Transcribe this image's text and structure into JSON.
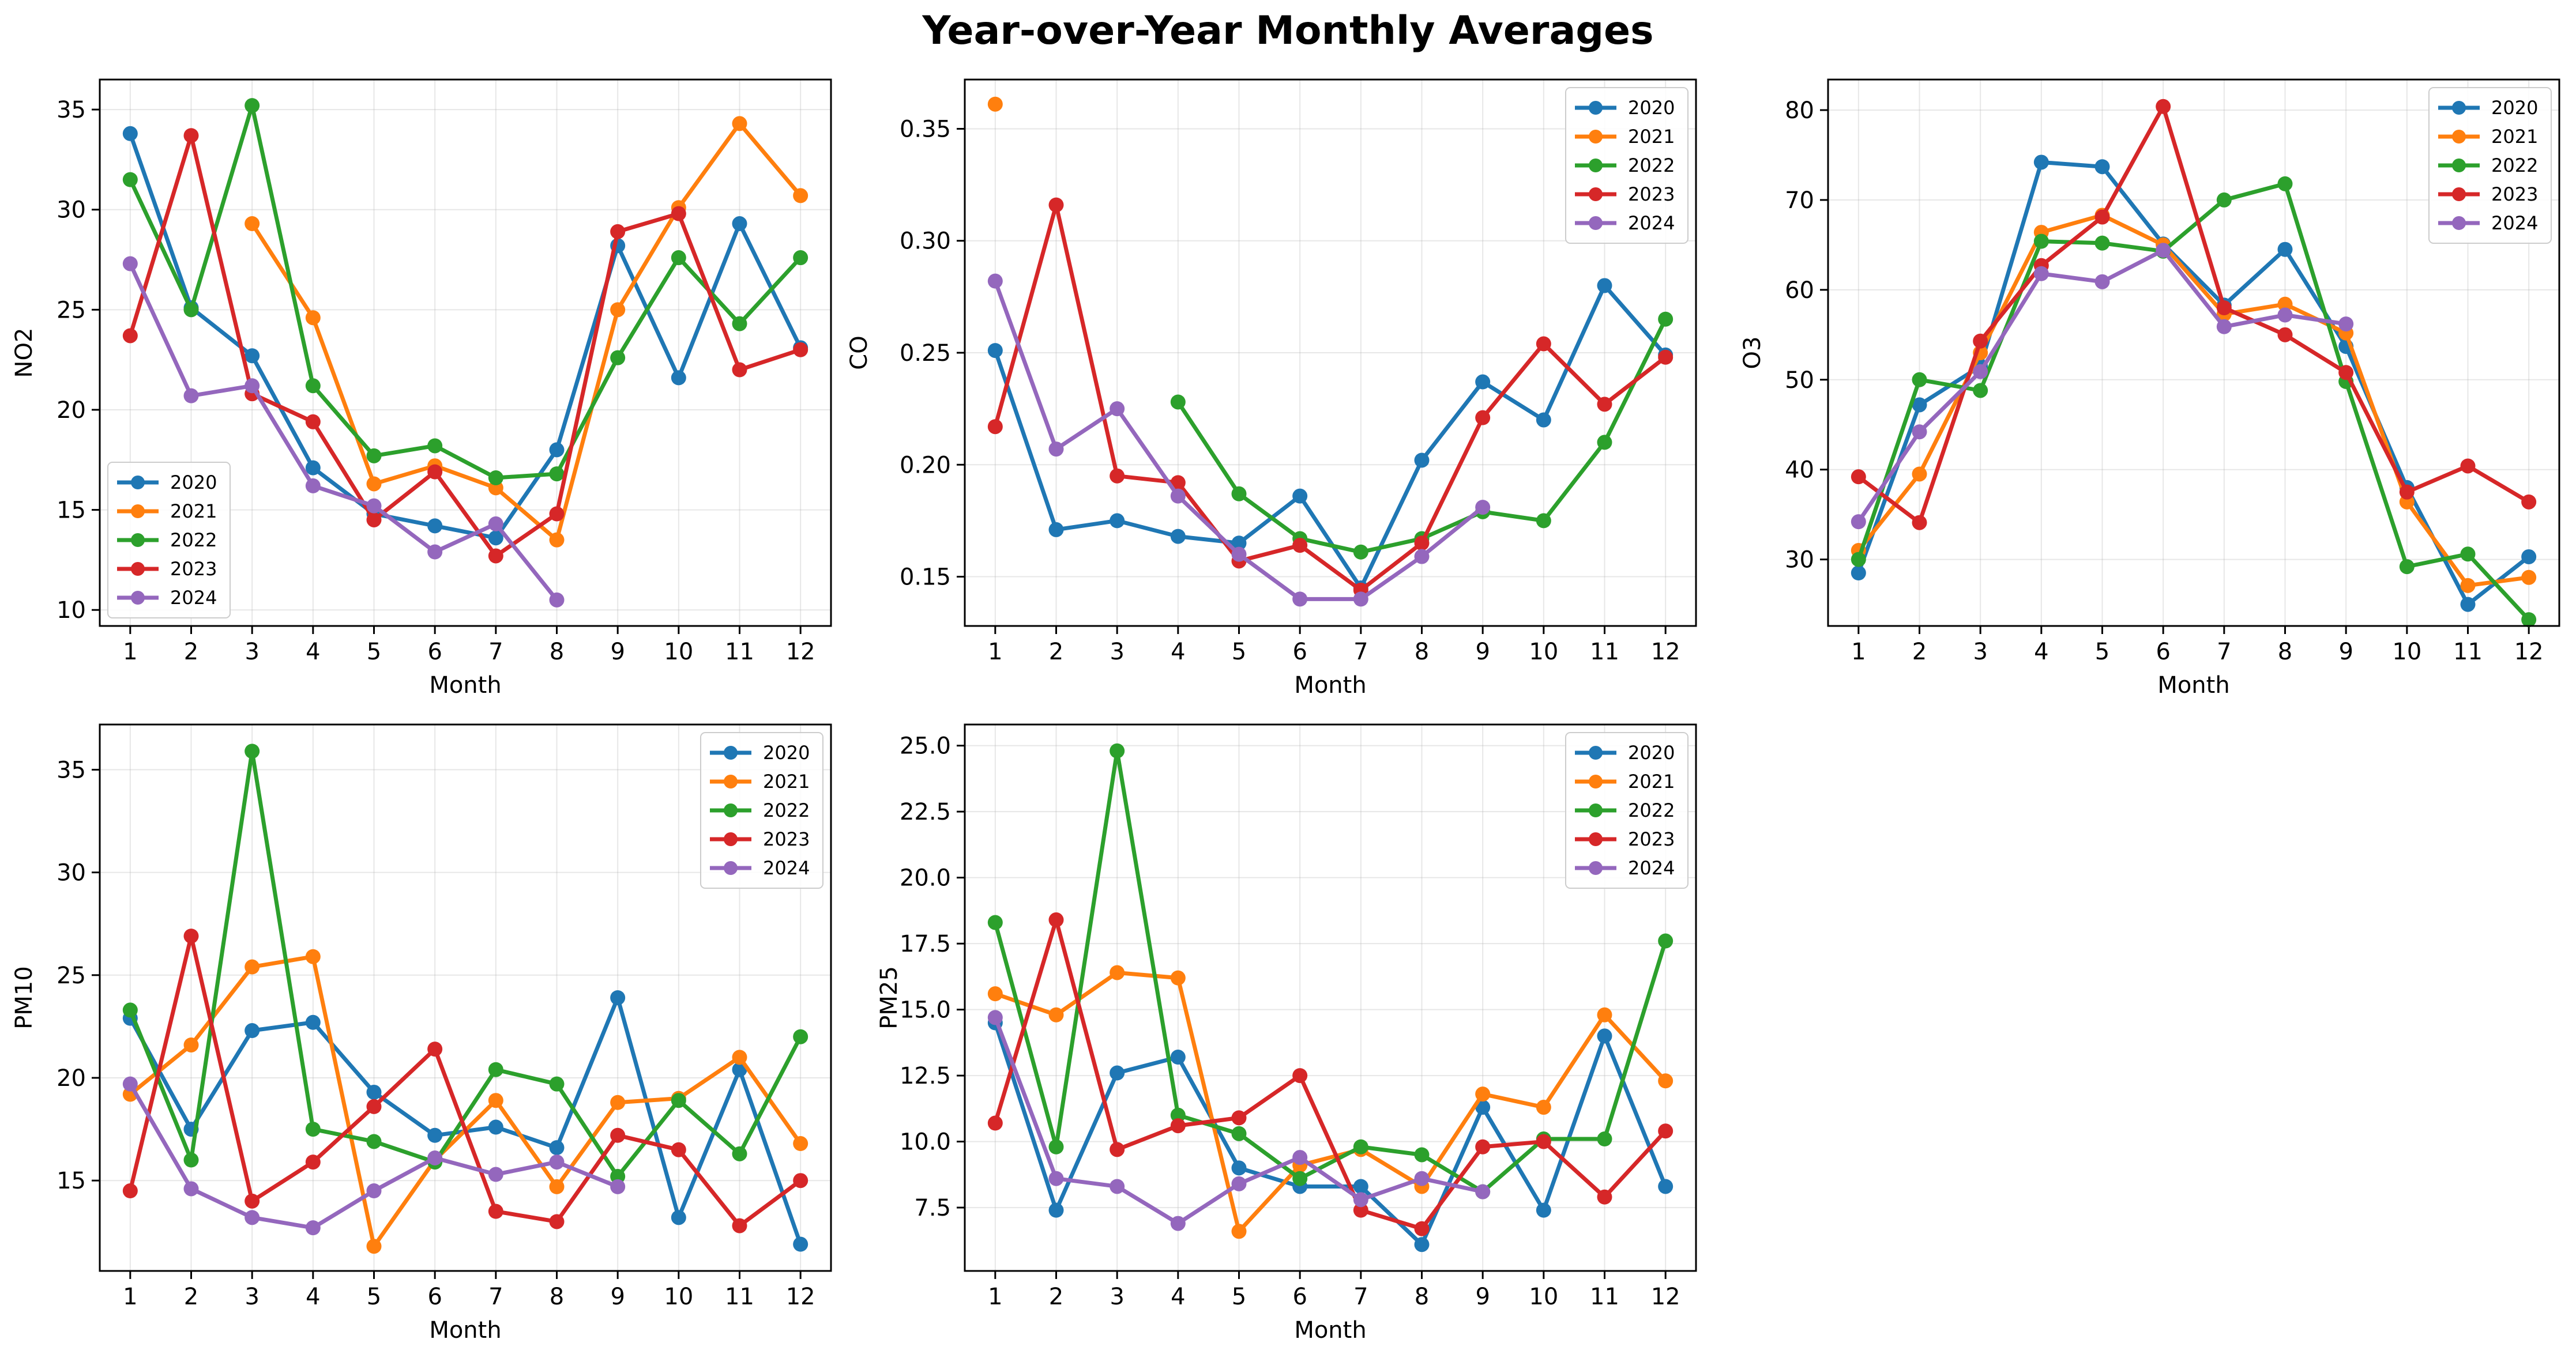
{
  "figure": {
    "title": "Year-over-Year Monthly Averages"
  },
  "colors": {
    "2020": "#1f77b4",
    "2021": "#ff7f0e",
    "2022": "#2ca02c",
    "2023": "#d62728",
    "2024": "#9467bd"
  },
  "chart_data": [
    {
      "type": "line",
      "ylabel": "NO2",
      "xlabel": "Month",
      "x": [
        1,
        2,
        3,
        4,
        5,
        6,
        7,
        8,
        9,
        10,
        11,
        12
      ],
      "xlim": [
        0.5,
        12.5
      ],
      "ylim": [
        9.2,
        36.5
      ],
      "yticks": [
        10,
        15,
        20,
        25,
        30,
        35
      ],
      "ytick_labels": [
        "10",
        "15",
        "20",
        "25",
        "30",
        "35"
      ],
      "legend": "lower-left",
      "grid": true,
      "series": [
        {
          "name": "2020",
          "color": "#1f77b4",
          "values": [
            33.8,
            25.1,
            22.7,
            17.1,
            14.8,
            14.2,
            13.6,
            18.0,
            28.2,
            21.6,
            29.3,
            23.1
          ]
        },
        {
          "name": "2021",
          "color": "#ff7f0e",
          "values": [
            null,
            null,
            29.3,
            24.6,
            16.3,
            17.2,
            16.1,
            13.5,
            25.0,
            30.1,
            34.3,
            30.7
          ]
        },
        {
          "name": "2022",
          "color": "#2ca02c",
          "values": [
            31.5,
            25.0,
            35.2,
            21.2,
            17.7,
            18.2,
            16.6,
            16.8,
            22.6,
            27.6,
            24.3,
            27.6
          ]
        },
        {
          "name": "2023",
          "color": "#d62728",
          "values": [
            23.7,
            33.7,
            20.8,
            19.4,
            14.5,
            16.9,
            12.7,
            14.8,
            28.9,
            29.8,
            22.0,
            23.0
          ]
        },
        {
          "name": "2024",
          "color": "#9467bd",
          "values": [
            27.3,
            20.7,
            21.2,
            16.2,
            15.2,
            12.9,
            14.3,
            10.5,
            null,
            null,
            null,
            null
          ]
        }
      ]
    },
    {
      "type": "line",
      "ylabel": "CO",
      "xlabel": "Month",
      "x": [
        1,
        2,
        3,
        4,
        5,
        6,
        7,
        8,
        9,
        10,
        11,
        12
      ],
      "xlim": [
        0.5,
        12.5
      ],
      "ylim": [
        0.128,
        0.372
      ],
      "yticks": [
        0.15,
        0.2,
        0.25,
        0.3,
        0.35
      ],
      "ytick_labels": [
        "0.15",
        "0.20",
        "0.25",
        "0.30",
        "0.35"
      ],
      "legend": "upper-right",
      "grid": true,
      "series": [
        {
          "name": "2020",
          "color": "#1f77b4",
          "values": [
            0.251,
            0.171,
            0.175,
            0.168,
            0.165,
            0.186,
            0.145,
            0.202,
            0.237,
            0.22,
            0.28,
            0.249
          ]
        },
        {
          "name": "2021",
          "color": "#ff7f0e",
          "values": [
            0.361,
            null,
            null,
            null,
            null,
            null,
            null,
            null,
            null,
            null,
            null,
            null
          ]
        },
        {
          "name": "2022",
          "color": "#2ca02c",
          "values": [
            null,
            null,
            null,
            0.228,
            0.187,
            0.167,
            0.161,
            0.167,
            0.179,
            0.175,
            0.21,
            0.265
          ]
        },
        {
          "name": "2023",
          "color": "#d62728",
          "values": [
            0.217,
            0.316,
            0.195,
            0.192,
            0.157,
            0.164,
            0.144,
            0.165,
            0.221,
            0.254,
            0.227,
            0.248
          ]
        },
        {
          "name": "2024",
          "color": "#9467bd",
          "values": [
            0.282,
            0.207,
            0.225,
            0.186,
            0.16,
            0.14,
            0.14,
            0.159,
            0.181,
            null,
            null,
            null
          ]
        }
      ]
    },
    {
      "type": "line",
      "ylabel": "O3",
      "xlabel": "Month",
      "x": [
        1,
        2,
        3,
        4,
        5,
        6,
        7,
        8,
        9,
        10,
        11,
        12
      ],
      "xlim": [
        0.5,
        12.5
      ],
      "ylim": [
        22.6,
        83.4
      ],
      "yticks": [
        30,
        40,
        50,
        60,
        70,
        80
      ],
      "ytick_labels": [
        "30",
        "40",
        "50",
        "60",
        "70",
        "80"
      ],
      "legend": "upper-right",
      "grid": true,
      "series": [
        {
          "name": "2020",
          "color": "#1f77b4",
          "values": [
            28.5,
            47.2,
            51.5,
            74.2,
            73.7,
            65.1,
            58.3,
            64.5,
            53.7,
            38.0,
            25.0,
            30.3
          ]
        },
        {
          "name": "2021",
          "color": "#ff7f0e",
          "values": [
            31.0,
            39.5,
            53.0,
            66.4,
            68.3,
            65.0,
            57.3,
            58.4,
            55.2,
            36.4,
            27.1,
            28.0
          ]
        },
        {
          "name": "2022",
          "color": "#2ca02c",
          "values": [
            30.0,
            50.0,
            48.8,
            65.4,
            65.2,
            64.3,
            70.0,
            71.8,
            49.8,
            29.2,
            30.6,
            23.3
          ]
        },
        {
          "name": "2023",
          "color": "#d62728",
          "values": [
            39.2,
            34.1,
            54.3,
            62.7,
            68.1,
            80.4,
            58.0,
            55.0,
            50.8,
            37.5,
            40.4,
            36.4
          ]
        },
        {
          "name": "2024",
          "color": "#9467bd",
          "values": [
            34.2,
            44.2,
            50.9,
            61.8,
            60.9,
            64.4,
            55.9,
            57.2,
            56.2,
            null,
            null,
            null
          ]
        }
      ]
    },
    {
      "type": "line",
      "ylabel": "PM10",
      "xlabel": "Month",
      "x": [
        1,
        2,
        3,
        4,
        5,
        6,
        7,
        8,
        9,
        10,
        11,
        12
      ],
      "xlim": [
        0.5,
        12.5
      ],
      "ylim": [
        10.6,
        37.2
      ],
      "yticks": [
        15,
        20,
        25,
        30,
        35
      ],
      "ytick_labels": [
        "15",
        "20",
        "25",
        "30",
        "35"
      ],
      "legend": "upper-right",
      "grid": true,
      "series": [
        {
          "name": "2020",
          "color": "#1f77b4",
          "values": [
            22.9,
            17.5,
            22.3,
            22.7,
            19.3,
            17.2,
            17.6,
            16.6,
            23.9,
            13.2,
            20.4,
            11.9
          ]
        },
        {
          "name": "2021",
          "color": "#ff7f0e",
          "values": [
            19.2,
            21.6,
            25.4,
            25.9,
            11.8,
            16.0,
            18.9,
            14.7,
            18.8,
            19.0,
            21.0,
            16.8
          ]
        },
        {
          "name": "2022",
          "color": "#2ca02c",
          "values": [
            23.3,
            16.0,
            35.9,
            17.5,
            16.9,
            15.9,
            20.4,
            19.7,
            15.2,
            18.9,
            16.3,
            22.0
          ]
        },
        {
          "name": "2023",
          "color": "#d62728",
          "values": [
            14.5,
            26.9,
            14.0,
            15.9,
            18.6,
            21.4,
            13.5,
            13.0,
            17.2,
            16.5,
            12.8,
            15.0
          ]
        },
        {
          "name": "2024",
          "color": "#9467bd",
          "values": [
            19.7,
            14.6,
            13.2,
            12.7,
            14.5,
            16.1,
            15.3,
            15.9,
            14.7,
            null,
            null,
            null
          ]
        }
      ]
    },
    {
      "type": "line",
      "ylabel": "PM25",
      "xlabel": "Month",
      "x": [
        1,
        2,
        3,
        4,
        5,
        6,
        7,
        8,
        9,
        10,
        11,
        12
      ],
      "xlim": [
        0.5,
        12.5
      ],
      "ylim": [
        5.1,
        25.8
      ],
      "yticks": [
        7.5,
        10.0,
        12.5,
        15.0,
        17.5,
        20.0,
        22.5,
        25.0
      ],
      "ytick_labels": [
        "7.5",
        "10.0",
        "12.5",
        "15.0",
        "17.5",
        "20.0",
        "22.5",
        "25.0"
      ],
      "legend": "upper-right",
      "grid": true,
      "series": [
        {
          "name": "2020",
          "color": "#1f77b4",
          "values": [
            14.5,
            7.4,
            12.6,
            13.2,
            9.0,
            8.3,
            8.3,
            6.1,
            11.3,
            7.4,
            14.0,
            8.3
          ]
        },
        {
          "name": "2021",
          "color": "#ff7f0e",
          "values": [
            15.6,
            14.8,
            16.4,
            16.2,
            6.6,
            9.1,
            9.7,
            8.3,
            11.8,
            11.3,
            14.8,
            12.3
          ]
        },
        {
          "name": "2022",
          "color": "#2ca02c",
          "values": [
            18.3,
            9.8,
            24.8,
            11.0,
            10.3,
            8.6,
            9.8,
            9.5,
            8.1,
            10.1,
            10.1,
            17.6
          ]
        },
        {
          "name": "2023",
          "color": "#d62728",
          "values": [
            10.7,
            18.4,
            9.7,
            10.6,
            10.9,
            12.5,
            7.4,
            6.7,
            9.8,
            10.0,
            7.9,
            10.4
          ]
        },
        {
          "name": "2024",
          "color": "#9467bd",
          "values": [
            14.7,
            8.6,
            8.3,
            6.9,
            8.4,
            9.4,
            7.8,
            8.6,
            8.1,
            null,
            null,
            null
          ]
        }
      ]
    }
  ]
}
